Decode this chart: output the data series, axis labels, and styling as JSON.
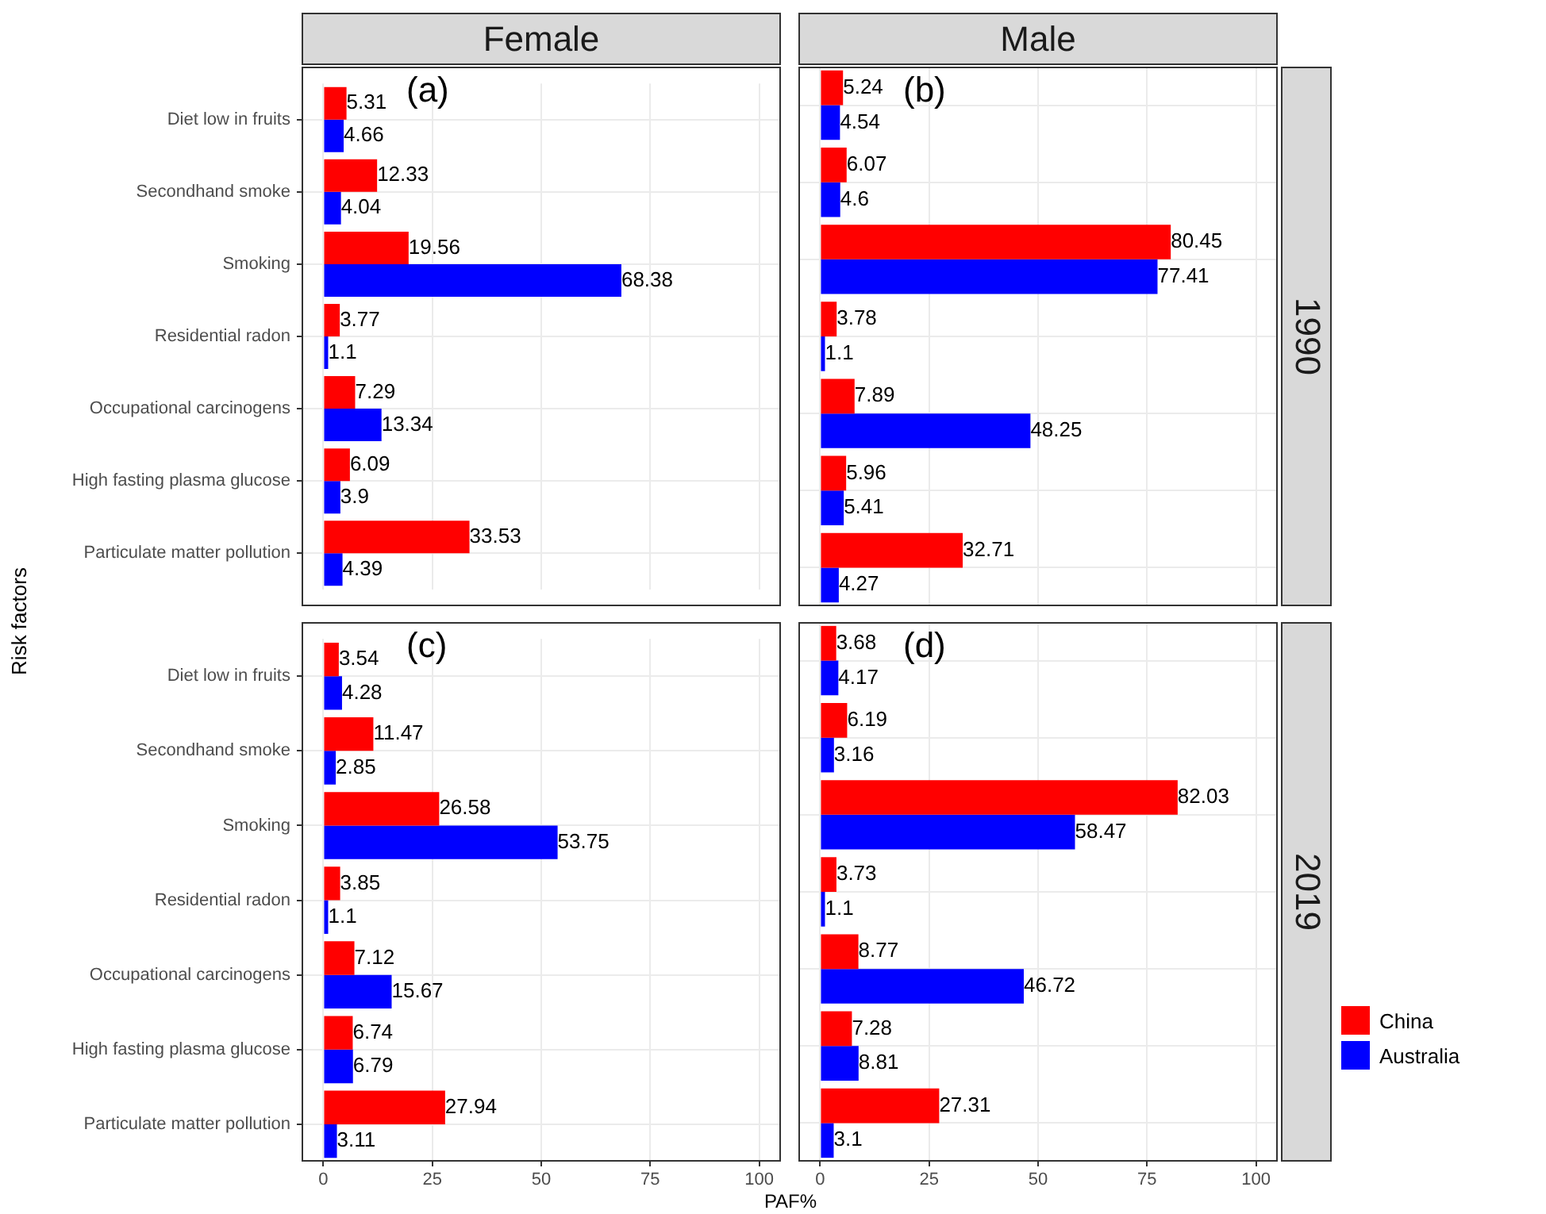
{
  "chart_data": [
    {
      "type": "bar",
      "orientation": "horizontal",
      "title": "Female",
      "ylabel": "Risk factors",
      "annotations": [
        "(a)"
      ],
      "categories": [
        "Diet low in fruits",
        "Secondhand smoke",
        "Smoking",
        "Residential radon",
        "Occupational carcinogens",
        "High fasting plasma glucose",
        "Particulate matter pollution"
      ],
      "series": [
        {
          "color": "#ff0000",
          "values": [
            5.31,
            12.33,
            19.56,
            3.77,
            7.29,
            6.09,
            33.53
          ]
        },
        {
          "color": "#0000ff",
          "values": [
            4.66,
            4.04,
            68.38,
            1.1,
            13.34,
            3.9,
            4.39
          ]
        }
      ],
      "xlim": [
        -5,
        105
      ],
      "xticks": [
        0,
        25,
        50,
        75,
        100
      ],
      "grid": true,
      "data_labels": true,
      "tick_labels": "y"
    },
    {
      "type": "bar",
      "orientation": "horizontal",
      "title": "Male",
      "y2label": "1990",
      "annotations": [
        "(b)"
      ],
      "legend": "right",
      "categories": [
        null,
        null,
        null,
        null,
        null,
        null,
        null
      ],
      "series": [
        {
          "name": "China",
          "color": "#ff0000",
          "values": [
            5.24,
            6.07,
            80.45,
            3.78,
            7.89,
            5.96,
            32.71
          ]
        },
        {
          "name": "Australia",
          "color": "#0000ff",
          "values": [
            4.54,
            4.6,
            77.41,
            1.1,
            48.25,
            5.41,
            4.27
          ]
        }
      ],
      "xlim": [
        -5,
        105
      ],
      "xticks": [
        0,
        25,
        50,
        75,
        100
      ],
      "grid": true,
      "data_labels": true,
      "tick_labels": false
    },
    {
      "type": "bar",
      "orientation": "horizontal",
      "xlabel": "PAF%",
      "annotations": [
        "(c)"
      ],
      "categories": [
        "Diet low in fruits",
        "Secondhand smoke",
        "Smoking",
        "Residential radon",
        "Occupational carcinogens",
        "High fasting plasma glucose",
        "Particulate matter pollution"
      ],
      "series": [
        {
          "color": "#ff0000",
          "values": [
            3.54,
            11.47,
            26.58,
            3.85,
            7.12,
            6.74,
            27.94
          ]
        },
        {
          "color": "#0000ff",
          "values": [
            4.28,
            2.85,
            53.75,
            1.1,
            15.67,
            6.79,
            3.11
          ]
        }
      ],
      "xlim": [
        -5,
        105
      ],
      "xticks": [
        0,
        25,
        50,
        75,
        100
      ],
      "grid": true,
      "data_labels": true
    },
    {
      "type": "bar",
      "orientation": "horizontal",
      "y2label": "2019",
      "annotations": [
        "(d)"
      ],
      "categories": [
        null,
        null,
        null,
        null,
        null,
        null,
        null
      ],
      "series": [
        {
          "color": "#ff0000",
          "values": [
            3.68,
            6.19,
            82.03,
            3.73,
            8.77,
            7.28,
            27.31
          ]
        },
        {
          "color": "#0000ff",
          "values": [
            4.17,
            3.16,
            58.47,
            1.1,
            46.72,
            8.81,
            3.1
          ]
        }
      ],
      "xlim": [
        -5,
        105
      ],
      "xticks": [
        0,
        25,
        50,
        75,
        100
      ],
      "grid": true,
      "data_labels": true,
      "tick_labels": "x"
    }
  ]
}
